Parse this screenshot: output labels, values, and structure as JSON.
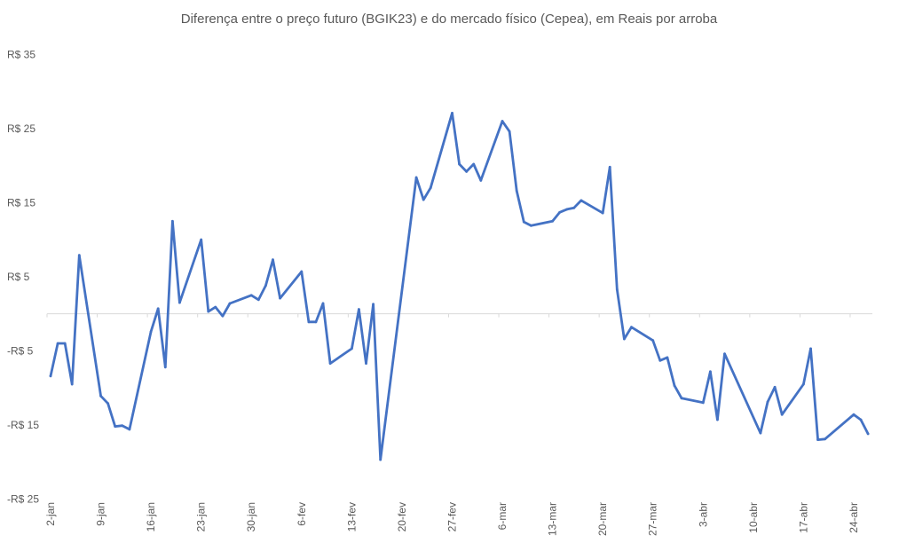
{
  "chart_data": {
    "type": "line",
    "title": "Diferença entre o  preço futuro (BGIK23) e do mercado físico (Cepea), em Reais por arroba",
    "xlabel": "",
    "ylabel": "",
    "ylim": [
      -25,
      35
    ],
    "y_ticks": [
      35,
      25,
      15,
      5,
      -5,
      -15,
      -25
    ],
    "y_tick_labels": [
      "R$ 35",
      "R$ 25",
      "R$ 15",
      "R$ 5",
      "-R$ 5",
      "-R$ 15",
      "-R$ 25"
    ],
    "x_tick_dates": [
      "2023-01-02",
      "2023-01-09",
      "2023-01-16",
      "2023-01-23",
      "2023-01-30",
      "2023-02-06",
      "2023-02-13",
      "2023-02-20",
      "2023-02-27",
      "2023-03-06",
      "2023-03-13",
      "2023-03-20",
      "2023-03-27",
      "2023-04-03",
      "2023-04-10",
      "2023-04-17",
      "2023-04-24"
    ],
    "x_tick_labels": [
      "2-jan",
      "9-jan",
      "16-jan",
      "23-jan",
      "30-jan",
      "6-fev",
      "13-fev",
      "20-fev",
      "27-fev",
      "6-mar",
      "13-mar",
      "20-mar",
      "27-mar",
      "3-abr",
      "10-abr",
      "17-abr",
      "24-abr"
    ],
    "grid": false,
    "legend": "none",
    "line_color": "#4472C4",
    "axis_color": "#D9D9D9",
    "series": [
      {
        "name": "Diferença",
        "x": [
          "2023-01-02",
          "2023-01-03",
          "2023-01-04",
          "2023-01-05",
          "2023-01-06",
          "2023-01-09",
          "2023-01-10",
          "2023-01-11",
          "2023-01-12",
          "2023-01-13",
          "2023-01-16",
          "2023-01-17",
          "2023-01-18",
          "2023-01-19",
          "2023-01-20",
          "2023-01-23",
          "2023-01-24",
          "2023-01-25",
          "2023-01-26",
          "2023-01-27",
          "2023-01-30",
          "2023-01-31",
          "2023-02-01",
          "2023-02-02",
          "2023-02-03",
          "2023-02-06",
          "2023-02-07",
          "2023-02-08",
          "2023-02-09",
          "2023-02-10",
          "2023-02-13",
          "2023-02-14",
          "2023-02-15",
          "2023-02-16",
          "2023-02-17",
          "2023-02-22",
          "2023-02-23",
          "2023-02-24",
          "2023-02-27",
          "2023-02-28",
          "2023-03-01",
          "2023-03-02",
          "2023-03-03",
          "2023-03-06",
          "2023-03-07",
          "2023-03-08",
          "2023-03-09",
          "2023-03-10",
          "2023-03-13",
          "2023-03-14",
          "2023-03-15",
          "2023-03-16",
          "2023-03-17",
          "2023-03-20",
          "2023-03-21",
          "2023-03-22",
          "2023-03-23",
          "2023-03-24",
          "2023-03-27",
          "2023-03-28",
          "2023-03-29",
          "2023-03-30",
          "2023-03-31",
          "2023-04-03",
          "2023-04-04",
          "2023-04-05",
          "2023-04-06",
          "2023-04-11",
          "2023-04-12",
          "2023-04-13",
          "2023-04-14",
          "2023-04-17",
          "2023-04-18",
          "2023-04-19",
          "2023-04-20",
          "2023-04-24",
          "2023-04-25",
          "2023-04-26"
        ],
        "values": [
          -8.4,
          -4.0,
          -4.0,
          -9.5,
          7.9,
          -11.1,
          -12.1,
          -15.2,
          -15.1,
          -15.6,
          -2.4,
          0.7,
          -7.2,
          12.5,
          1.5,
          10.0,
          0.3,
          0.9,
          -0.3,
          1.4,
          2.5,
          1.9,
          3.8,
          7.3,
          2.1,
          5.7,
          -1.1,
          -1.1,
          1.4,
          -6.7,
          -4.7,
          0.6,
          -6.7,
          1.3,
          -19.7,
          18.4,
          15.4,
          17.0,
          27.1,
          20.2,
          19.2,
          20.2,
          18.0,
          26.0,
          24.6,
          16.6,
          12.4,
          11.9,
          12.5,
          13.7,
          14.1,
          14.3,
          15.3,
          13.6,
          19.8,
          3.3,
          -3.4,
          -1.8,
          -3.6,
          -6.3,
          -5.9,
          -9.7,
          -11.4,
          -12.0,
          -7.8,
          -14.3,
          -5.4,
          -16.1,
          -11.9,
          -9.9,
          -13.6,
          -9.5,
          -4.7,
          -17.0,
          -16.9,
          -13.6,
          -14.3,
          -16.2
        ]
      }
    ]
  }
}
